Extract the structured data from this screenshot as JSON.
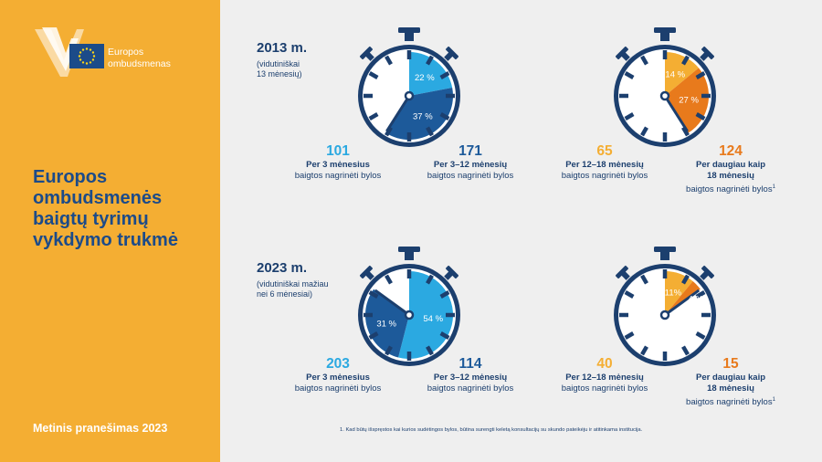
{
  "sidebar": {
    "brand_line1": "Europos",
    "brand_line2": "ombudsmenas",
    "title_lines": [
      "Europos",
      "ombudsmenės",
      "baigtų tyrimų",
      "vykdymo trukmė"
    ],
    "report": "Metinis pranešimas 2023"
  },
  "footnote": "1. Kad būtų išspręstos kai kurios sudėtingos bylos, būtina surengti keletą konsultacijų su skundo pateikėju ir atitinkama institucija.",
  "colors": {
    "sidebar": "#f4ae33",
    "navy": "#1c3f6e",
    "light_blue": "#2ba9e1",
    "dark_blue": "#1d5a9a",
    "yellow": "#f4ae33",
    "orange": "#e87a1c"
  },
  "chart_data": [
    {
      "type": "pie",
      "year_label": "2013 m.",
      "subtitle_lines": [
        "(vidutiniškai",
        "13 mėnesių)"
      ],
      "watches": [
        {
          "slices": [
            {
              "pct_label": "22 %",
              "value": 22
            },
            {
              "pct_label": "37 %",
              "value": 37
            }
          ],
          "stats": [
            {
              "count": "101",
              "value": 101,
              "bold_lines": [
                "Per 3 mėnesius"
              ],
              "lines": [
                "baigtos nagrinėti bylos"
              ],
              "note": ""
            },
            {
              "count": "171",
              "value": 171,
              "bold_lines": [
                "Per 3–12 mėnesių"
              ],
              "lines": [
                "baigtos nagrinėti bylos"
              ],
              "note": ""
            }
          ]
        },
        {
          "slices": [
            {
              "pct_label": "14 %",
              "value": 14
            },
            {
              "pct_label": "27 %",
              "value": 27
            }
          ],
          "stats": [
            {
              "count": "65",
              "value": 65,
              "bold_lines": [
                "Per 12–18 mėnesių"
              ],
              "lines": [
                "baigtos nagrinėti bylos"
              ],
              "note": ""
            },
            {
              "count": "124",
              "value": 124,
              "bold_lines": [
                "Per daugiau kaip",
                "18 mėnesių"
              ],
              "lines": [
                "baigtos nagrinėti bylos"
              ],
              "note": "1"
            }
          ]
        }
      ]
    },
    {
      "type": "pie",
      "year_label": "2023 m.",
      "subtitle_lines": [
        "(vidutiniškai mažiau",
        "nei 6 mėnesiai)"
      ],
      "watches": [
        {
          "slices": [
            {
              "pct_label": "54 %",
              "value": 54
            },
            {
              "pct_label": "31 %",
              "value": 31
            }
          ],
          "stats": [
            {
              "count": "203",
              "value": 203,
              "bold_lines": [
                "Per 3 mėnesius"
              ],
              "lines": [
                "baigtos nagrinėti bylos"
              ],
              "note": ""
            },
            {
              "count": "114",
              "value": 114,
              "bold_lines": [
                "Per 3–12 mėnesių"
              ],
              "lines": [
                "baigtos nagrinėti bylos"
              ],
              "note": ""
            }
          ]
        },
        {
          "slices": [
            {
              "pct_label": "11%",
              "value": 11
            },
            {
              "pct_label": "4 %",
              "value": 4
            }
          ],
          "stats": [
            {
              "count": "40",
              "value": 40,
              "bold_lines": [
                "Per 12–18 mėnesių"
              ],
              "lines": [
                "baigtos nagrinėti bylos"
              ],
              "note": ""
            },
            {
              "count": "15",
              "value": 15,
              "bold_lines": [
                "Per daugiau kaip",
                "18 mėnesių"
              ],
              "lines": [
                "baigtos nagrinėti bylos"
              ],
              "note": "1"
            }
          ]
        }
      ]
    }
  ]
}
